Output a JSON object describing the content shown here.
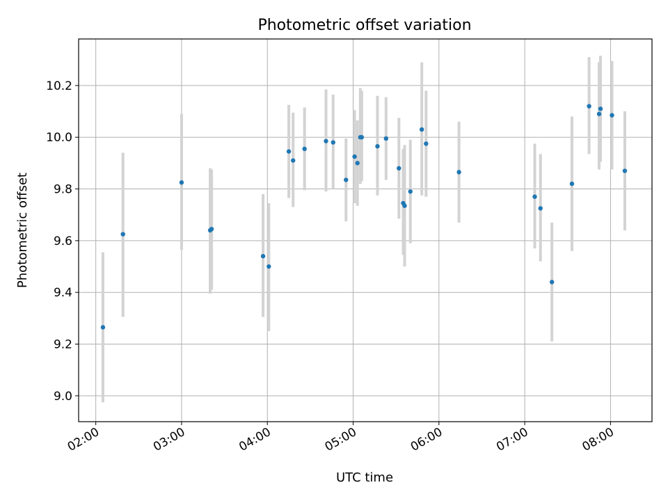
{
  "chart_data": {
    "type": "scatter",
    "title": "Photometric offset variation",
    "xlabel": "UTC time",
    "ylabel": "Photometric offset",
    "xlim": [
      "01:48",
      "08:29"
    ],
    "ylim": [
      8.9,
      10.38
    ],
    "x_ticks": [
      "02:00",
      "03:00",
      "04:00",
      "05:00",
      "06:00",
      "07:00",
      "08:00"
    ],
    "y_ticks": [
      "9.0",
      "9.2",
      "9.4",
      "9.6",
      "9.8",
      "10.0",
      "10.2"
    ],
    "grid": true,
    "colors": {
      "point": "#1f77b4",
      "errorbar": "#d3d3d3",
      "grid": "#b0b0b0"
    },
    "points": [
      {
        "x": "02:05",
        "y": 9.265,
        "err_low": 8.975,
        "err_high": 9.555
      },
      {
        "x": "02:19",
        "y": 9.625,
        "err_low": 9.305,
        "err_high": 9.94
      },
      {
        "x": "03:00",
        "y": 9.825,
        "err_low": 9.565,
        "err_high": 10.09
      },
      {
        "x": "03:20",
        "y": 9.64,
        "err_low": 9.395,
        "err_high": 9.88
      },
      {
        "x": "03:21",
        "y": 9.645,
        "err_low": 9.41,
        "err_high": 9.875
      },
      {
        "x": "03:57",
        "y": 9.54,
        "err_low": 9.305,
        "err_high": 9.78
      },
      {
        "x": "04:01",
        "y": 9.5,
        "err_low": 9.25,
        "err_high": 9.745
      },
      {
        "x": "04:15",
        "y": 9.945,
        "err_low": 9.765,
        "err_high": 10.125
      },
      {
        "x": "04:18",
        "y": 9.91,
        "err_low": 9.73,
        "err_high": 10.095
      },
      {
        "x": "04:26",
        "y": 9.955,
        "err_low": 9.795,
        "err_high": 10.115
      },
      {
        "x": "04:41",
        "y": 9.985,
        "err_low": 9.79,
        "err_high": 10.185
      },
      {
        "x": "04:46",
        "y": 9.98,
        "err_low": 9.8,
        "err_high": 10.165
      },
      {
        "x": "04:55",
        "y": 9.835,
        "err_low": 9.675,
        "err_high": 9.995
      },
      {
        "x": "05:01",
        "y": 9.925,
        "err_low": 9.745,
        "err_high": 10.105
      },
      {
        "x": "05:03",
        "y": 9.9,
        "err_low": 9.735,
        "err_high": 10.065
      },
      {
        "x": "05:05",
        "y": 10.0,
        "err_low": 9.82,
        "err_high": 10.19
      },
      {
        "x": "05:06",
        "y": 10.0,
        "err_low": 9.83,
        "err_high": 10.18
      },
      {
        "x": "05:17",
        "y": 9.965,
        "err_low": 9.775,
        "err_high": 10.16
      },
      {
        "x": "05:23",
        "y": 9.995,
        "err_low": 9.835,
        "err_high": 10.155
      },
      {
        "x": "05:32",
        "y": 9.88,
        "err_low": 9.685,
        "err_high": 10.075
      },
      {
        "x": "05:35",
        "y": 9.745,
        "err_low": 9.545,
        "err_high": 9.955
      },
      {
        "x": "05:36",
        "y": 9.735,
        "err_low": 9.5,
        "err_high": 9.97
      },
      {
        "x": "05:40",
        "y": 9.79,
        "err_low": 9.59,
        "err_high": 9.99
      },
      {
        "x": "05:48",
        "y": 10.03,
        "err_low": 9.775,
        "err_high": 10.29
      },
      {
        "x": "05:51",
        "y": 9.975,
        "err_low": 9.77,
        "err_high": 10.18
      },
      {
        "x": "06:14",
        "y": 9.865,
        "err_low": 9.67,
        "err_high": 10.06
      },
      {
        "x": "07:07",
        "y": 9.77,
        "err_low": 9.57,
        "err_high": 9.975
      },
      {
        "x": "07:11",
        "y": 9.725,
        "err_low": 9.52,
        "err_high": 9.935
      },
      {
        "x": "07:19",
        "y": 9.44,
        "err_low": 9.21,
        "err_high": 9.67
      },
      {
        "x": "07:33",
        "y": 9.82,
        "err_low": 9.56,
        "err_high": 10.08
      },
      {
        "x": "07:45",
        "y": 10.12,
        "err_low": 9.935,
        "err_high": 10.31
      },
      {
        "x": "07:52",
        "y": 10.09,
        "err_low": 9.875,
        "err_high": 10.29
      },
      {
        "x": "07:53",
        "y": 10.11,
        "err_low": 9.905,
        "err_high": 10.315
      },
      {
        "x": "08:01",
        "y": 10.085,
        "err_low": 9.875,
        "err_high": 10.295
      },
      {
        "x": "08:10",
        "y": 9.87,
        "err_low": 9.64,
        "err_high": 10.1
      }
    ]
  }
}
